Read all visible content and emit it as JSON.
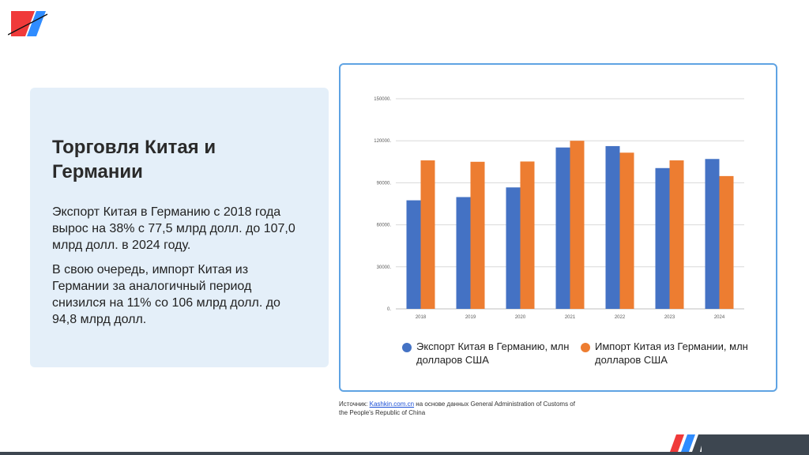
{
  "text_panel": {
    "title": "Торговля Китая и Германии",
    "paragraph_1": "Экспорт Китая в Германию с 2018 года вырос на 38% с 77,5 млрд долл. до 107,0 млрд долл. в 2024 году.",
    "paragraph_2": "В свою очередь, импорт Китая из Германии за аналогичный период снизился на 11% со 106 млрд долл. до 94,8 млрд долл."
  },
  "chart_data": {
    "type": "bar",
    "title": "",
    "xlabel": "",
    "ylabel": "",
    "categories": [
      "2018",
      "2019",
      "2020",
      "2021",
      "2022",
      "2023",
      "2024"
    ],
    "series": [
      {
        "name": "Экспорт Китая в Германию, млн долларов США",
        "color": "#4472c4",
        "values": [
          77500,
          79800,
          86700,
          115200,
          116200,
          100500,
          107000
        ]
      },
      {
        "name": "Импорт Китая из Германии, млн долларов США",
        "color": "#ed7d31",
        "values": [
          106000,
          105000,
          105200,
          120000,
          111500,
          106000,
          94800
        ]
      }
    ],
    "ylim": [
      0,
      150000
    ],
    "yticks": [
      0,
      30000,
      60000,
      90000,
      120000,
      150000
    ],
    "ytick_labels": [
      "0.",
      "30000.",
      "60000.",
      "90000.",
      "120000.",
      "150000."
    ],
    "grid": true,
    "legend_position": "bottom"
  },
  "legend": {
    "export_label": "Экспорт Китая в Германию, млн долларов США",
    "import_label": "Импорт Китая из Германии, млн долларов США"
  },
  "source": {
    "prefix": "Источник: ",
    "link_text": "Kashkin.com.cn",
    "suffix": " на основе данных General Administration of Customs of the People's Republic of China"
  },
  "colors": {
    "export": "#4472c4",
    "import": "#ed7d31",
    "panel_bg": "#e4eff9",
    "frame_border": "#5fa3e3",
    "logo_red": "#f03a3a",
    "logo_blue": "#2f8cff"
  }
}
